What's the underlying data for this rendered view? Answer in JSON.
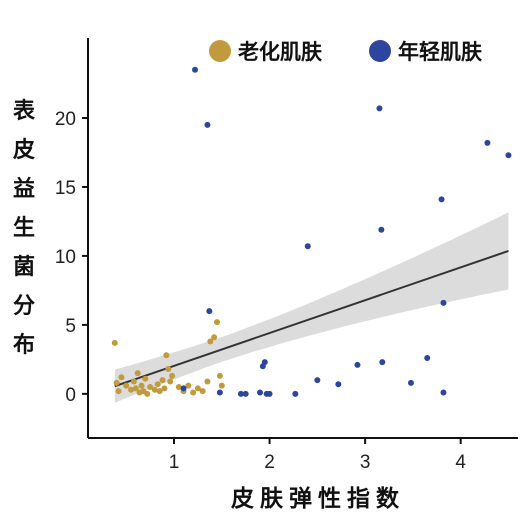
{
  "chart_data": {
    "type": "scatter",
    "xlabel": "皮肤弹性指数",
    "ylabel": "表皮益生菌分布",
    "xlim": [
      0.1,
      4.6
    ],
    "ylim": [
      -3.2,
      25.8
    ],
    "xticks": [
      1,
      2,
      3,
      4
    ],
    "yticks": [
      0,
      5,
      10,
      15,
      20
    ],
    "legend_position": "top-right",
    "series": [
      {
        "name": "老化肌肤",
        "color": "#c09a3c",
        "points": [
          [
            0.38,
            3.7
          ],
          [
            0.4,
            0.8
          ],
          [
            0.42,
            0.2
          ],
          [
            0.45,
            1.2
          ],
          [
            0.5,
            0.6
          ],
          [
            0.55,
            0.3
          ],
          [
            0.58,
            0.9
          ],
          [
            0.6,
            0.4
          ],
          [
            0.62,
            1.5
          ],
          [
            0.64,
            0.1
          ],
          [
            0.66,
            0.6
          ],
          [
            0.68,
            0.2
          ],
          [
            0.7,
            1.1
          ],
          [
            0.72,
            0.0
          ],
          [
            0.75,
            0.5
          ],
          [
            0.8,
            0.3
          ],
          [
            0.83,
            0.7
          ],
          [
            0.85,
            0.2
          ],
          [
            0.88,
            1.0
          ],
          [
            0.9,
            0.4
          ],
          [
            0.92,
            2.8
          ],
          [
            0.94,
            1.8
          ],
          [
            0.96,
            0.9
          ],
          [
            0.98,
            1.3
          ],
          [
            1.05,
            0.5
          ],
          [
            1.1,
            0.2
          ],
          [
            1.15,
            0.6
          ],
          [
            1.2,
            0.1
          ],
          [
            1.25,
            0.4
          ],
          [
            1.3,
            0.2
          ],
          [
            1.35,
            0.9
          ],
          [
            1.38,
            3.8
          ],
          [
            1.42,
            4.1
          ],
          [
            1.45,
            5.2
          ],
          [
            1.48,
            1.3
          ],
          [
            1.5,
            0.6
          ]
        ]
      },
      {
        "name": "年轻肌肤",
        "color": "#2e45a0",
        "points": [
          [
            1.1,
            0.4
          ],
          [
            1.22,
            23.5
          ],
          [
            1.35,
            19.5
          ],
          [
            1.37,
            6.0
          ],
          [
            1.48,
            0.1
          ],
          [
            1.7,
            0.0
          ],
          [
            1.75,
            0.0
          ],
          [
            1.9,
            0.1
          ],
          [
            1.93,
            2.0
          ],
          [
            1.95,
            2.3
          ],
          [
            1.97,
            0.0
          ],
          [
            2.0,
            0.0
          ],
          [
            2.27,
            0.0
          ],
          [
            2.4,
            10.7
          ],
          [
            2.5,
            1.0
          ],
          [
            2.72,
            0.7
          ],
          [
            2.92,
            2.1
          ],
          [
            3.15,
            20.7
          ],
          [
            3.17,
            11.9
          ],
          [
            3.18,
            2.3
          ],
          [
            3.48,
            0.8
          ],
          [
            3.65,
            2.6
          ],
          [
            3.8,
            14.1
          ],
          [
            3.82,
            6.6
          ],
          [
            3.82,
            0.1
          ],
          [
            4.28,
            18.2
          ],
          [
            4.5,
            17.3
          ]
        ]
      }
    ],
    "regression": {
      "intercept": -0.35,
      "slope": 2.38,
      "x_start": 0.38,
      "x_end": 4.5
    }
  }
}
